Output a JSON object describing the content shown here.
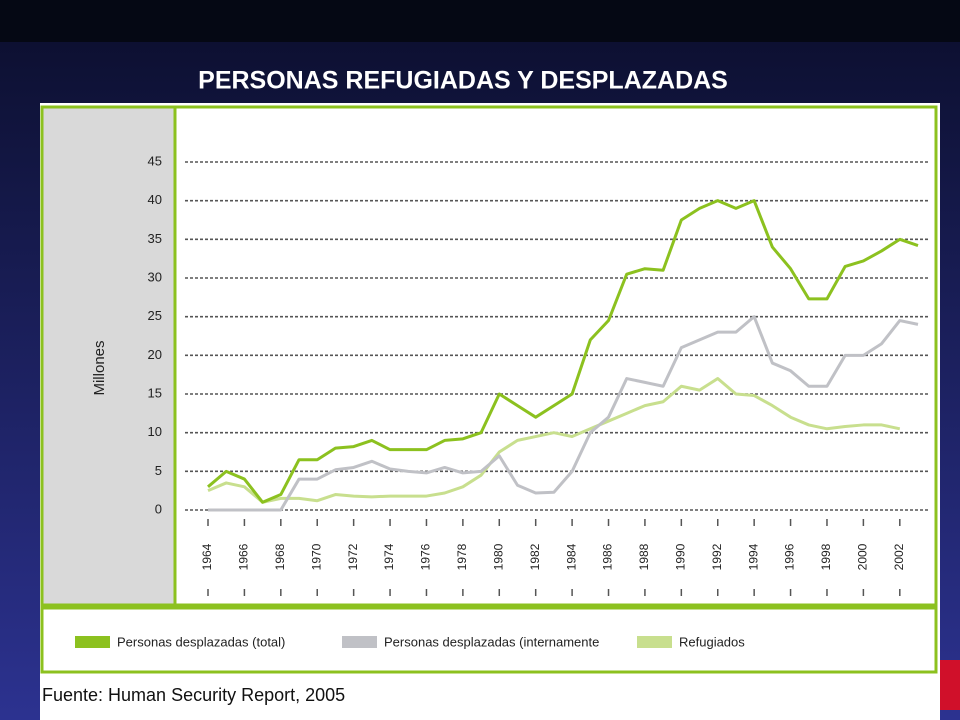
{
  "chart_data": {
    "type": "line",
    "title": "PERSONAS REFUGIADAS Y DESPLAZADAS",
    "y_label": "Millones",
    "source": "Fuente: Human Security Report, 2005",
    "x": [
      1964,
      1965,
      1966,
      1967,
      1968,
      1969,
      1970,
      1971,
      1972,
      1973,
      1974,
      1975,
      1976,
      1977,
      1978,
      1979,
      1980,
      1981,
      1982,
      1983,
      1984,
      1985,
      1986,
      1987,
      1988,
      1989,
      1990,
      1991,
      1992,
      1993,
      1994,
      1995,
      1996,
      1997,
      1998,
      1999,
      2000,
      2001,
      2002,
      2003
    ],
    "xlim": [
      1964,
      2003
    ],
    "xticks": [
      1964,
      1966,
      1968,
      1970,
      1972,
      1974,
      1976,
      1978,
      1980,
      1982,
      1984,
      1986,
      1988,
      1990,
      1992,
      1994,
      1996,
      1998,
      2000,
      2002
    ],
    "ylim": [
      0,
      45
    ],
    "yticks": [
      0,
      5,
      10,
      15,
      20,
      25,
      30,
      35,
      40,
      45
    ],
    "grid": true,
    "legend": "bottom",
    "series": [
      {
        "name": "Personas desplazadas (total)",
        "color": "#8cc11f",
        "values": [
          3,
          5,
          4,
          1,
          2,
          6.5,
          6.5,
          8,
          8.2,
          9,
          7.8,
          7.8,
          7.8,
          9,
          9.2,
          10,
          15,
          13.5,
          12,
          13.5,
          15,
          22,
          24.5,
          30.5,
          31.2,
          31,
          37.5,
          39,
          40,
          39,
          40,
          34,
          31.2,
          27.3,
          27.3,
          31.5,
          32.2,
          33.5,
          35,
          34.2
        ]
      },
      {
        "name": "Personas desplazadas (internamente",
        "color": "#c0c1c6",
        "values": [
          0,
          0,
          0,
          0,
          0,
          4,
          4,
          5.2,
          5.5,
          6.3,
          5.3,
          5,
          4.8,
          5.5,
          4.8,
          5,
          7,
          3.2,
          2.2,
          2.3,
          5,
          10,
          12,
          17,
          16.5,
          16,
          21,
          22,
          23,
          23,
          25,
          19,
          18,
          16,
          16,
          20,
          20,
          21.5,
          24.5,
          24
        ]
      },
      {
        "name": "Refugiados",
        "color": "#c8df8e",
        "values": [
          2.5,
          3.5,
          3,
          1,
          1.5,
          1.5,
          1.2,
          2,
          1.8,
          1.7,
          1.8,
          1.8,
          1.8,
          2.2,
          3,
          4.5,
          7.5,
          9,
          9.5,
          10,
          9.5,
          10.5,
          11.5,
          12.5,
          13.5,
          14,
          16,
          15.5,
          17,
          15,
          14.8,
          13.5,
          12,
          11,
          10.5,
          10.8,
          11,
          11,
          10.5,
          null
        ]
      }
    ]
  }
}
